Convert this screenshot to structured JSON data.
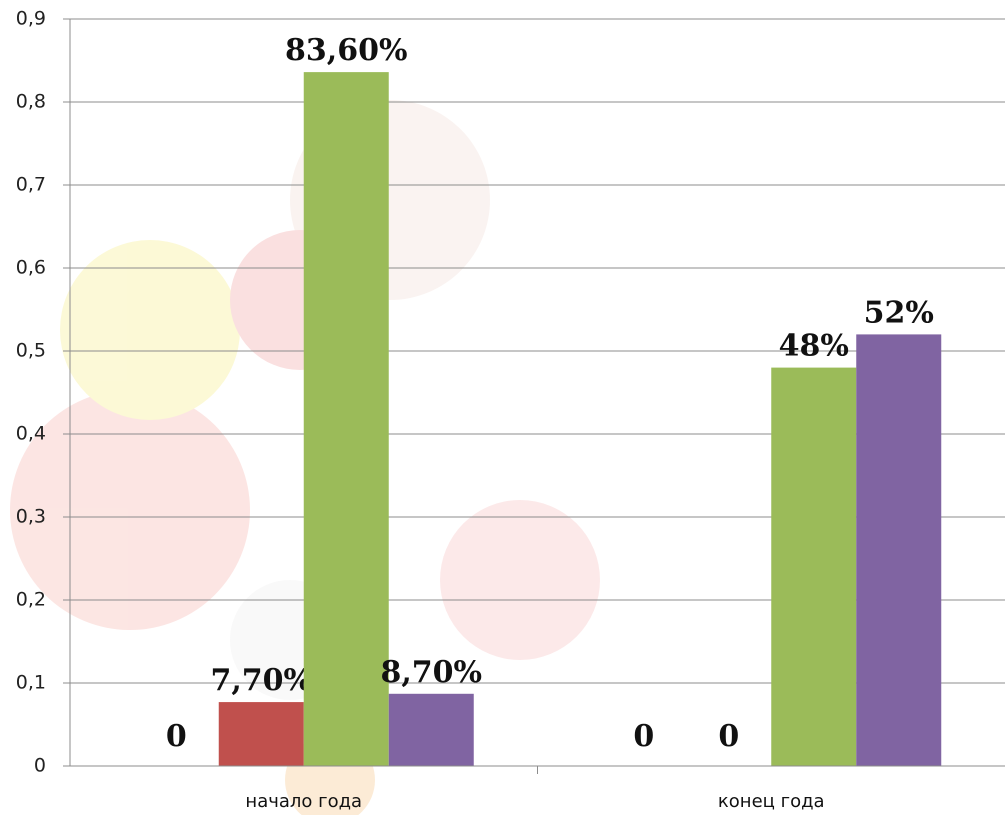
{
  "chart_data": {
    "type": "bar",
    "categories": [
      "начало года",
      "конец года"
    ],
    "series": [
      {
        "color": "#4f81bd",
        "values": [
          0,
          0
        ],
        "value_labels": [
          "0",
          "0"
        ]
      },
      {
        "color": "#c0504d",
        "values": [
          0.077,
          0
        ],
        "value_labels": [
          "7,70%",
          "0"
        ]
      },
      {
        "color": "#9bbb59",
        "values": [
          0.836,
          0.48
        ],
        "value_labels": [
          "83,60%",
          "48%"
        ]
      },
      {
        "color": "#8064a2",
        "values": [
          0.087,
          0.52
        ],
        "value_labels": [
          "8,70%",
          "52%"
        ]
      }
    ],
    "ylim": [
      0,
      0.9
    ],
    "yticks": [
      0,
      {
        "value": 0.1,
        "label": "0,1"
      },
      {
        "value": 0.2,
        "label": "0,2"
      },
      {
        "value": 0.3,
        "label": "0,3"
      },
      {
        "value": 0.4,
        "label": "0,4"
      },
      {
        "value": 0.5,
        "label": "0,5"
      },
      {
        "value": 0.6,
        "label": "0,6"
      },
      {
        "value": 0.7,
        "label": "0,7"
      },
      {
        "value": 0.8,
        "label": "0,8"
      },
      {
        "value": 0.9,
        "label": "0,9"
      }
    ],
    "grid": true
  }
}
